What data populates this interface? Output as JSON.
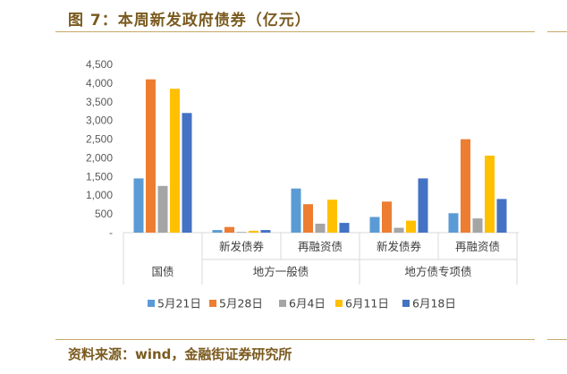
{
  "figure": {
    "title": "图 7：本周新发政府债券（亿元）",
    "source": "资料来源：wind，金融街证券研究所"
  },
  "chart_data": {
    "type": "bar",
    "title": "",
    "xlabel": "",
    "ylabel": "",
    "ylim": [
      0,
      4500
    ],
    "yticks": [
      0,
      500,
      1000,
      1500,
      2000,
      2500,
      3000,
      3500,
      4000,
      4500
    ],
    "ytick_labels": [
      "-",
      "500",
      "1,000",
      "1,500",
      "2,000",
      "2,500",
      "3,000",
      "3,500",
      "4,000",
      "4,500"
    ],
    "grid": false,
    "legend_position": "bottom",
    "categories": [
      "国债",
      "新发债券",
      "再融资债",
      "新发债券",
      "再融资债"
    ],
    "groups": [
      {
        "label": "地方一般债",
        "categories": [
          1,
          2
        ]
      },
      {
        "label": "地方债专项债",
        "categories": [
          3,
          4
        ]
      }
    ],
    "series": [
      {
        "name": "5月21日",
        "color": "#5b9bd5",
        "values": [
          1450,
          70,
          1180,
          420,
          520
        ]
      },
      {
        "name": "5月28日",
        "color": "#ed7d31",
        "values": [
          4100,
          150,
          760,
          830,
          2500
        ]
      },
      {
        "name": "6月4日",
        "color": "#a5a5a5",
        "values": [
          1250,
          20,
          240,
          130,
          380
        ]
      },
      {
        "name": "6月11日",
        "color": "#ffc000",
        "values": [
          3850,
          50,
          880,
          320,
          2060
        ]
      },
      {
        "name": "6月18日",
        "color": "#4472c4",
        "values": [
          3200,
          70,
          260,
          1450,
          900
        ]
      }
    ]
  }
}
